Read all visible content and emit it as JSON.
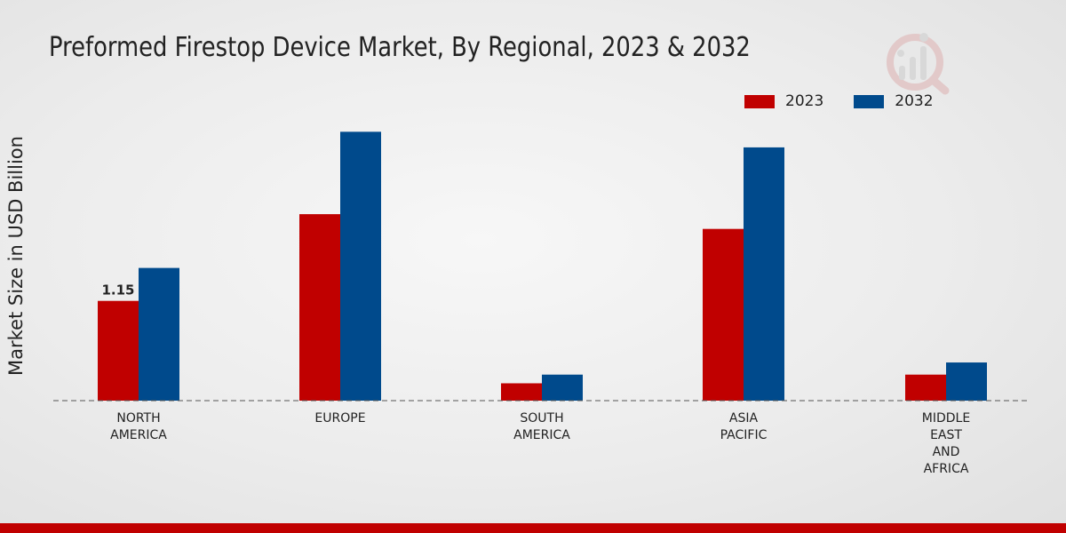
{
  "chart_data": {
    "type": "bar",
    "title": "Preformed Firestop Device Market, By Regional, 2023 & 2032",
    "ylabel": "Market Size in USD Billion",
    "xlabel": "",
    "categories": [
      [
        "NORTH",
        "AMERICA"
      ],
      [
        "EUROPE"
      ],
      [
        "SOUTH",
        "AMERICA"
      ],
      [
        "ASIA",
        "PACIFIC"
      ],
      [
        "MIDDLE",
        "EAST",
        "AND",
        "AFRICA"
      ]
    ],
    "series": [
      {
        "name": "2023",
        "color": "#c00000",
        "values": [
          1.15,
          2.15,
          0.2,
          1.98,
          0.3
        ]
      },
      {
        "name": "2032",
        "color": "#004a8c",
        "values": [
          1.53,
          3.1,
          0.3,
          2.92,
          0.44
        ]
      }
    ],
    "data_labels": [
      {
        "series": 0,
        "index": 0,
        "text": "1.15"
      }
    ],
    "ylim": [
      0,
      3.8
    ],
    "grid": false,
    "legend_position": "top-right"
  }
}
